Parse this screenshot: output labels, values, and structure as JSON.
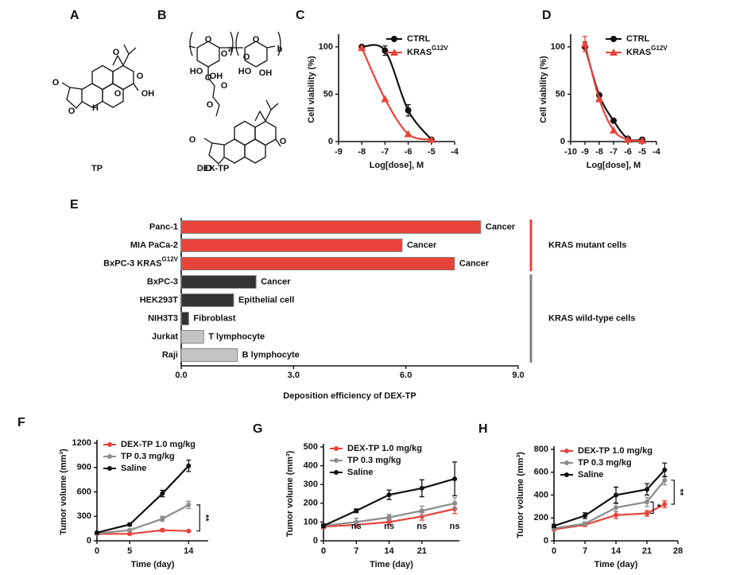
{
  "panels": [
    "A",
    "B",
    "C",
    "D",
    "E",
    "F",
    "G",
    "H"
  ],
  "structures": [
    {
      "name": "TP",
      "atoms": [
        "O",
        "O",
        "O",
        "O",
        "OH",
        "O",
        "H"
      ]
    },
    {
      "name": "DEX-TP",
      "atoms": [
        "O",
        "O",
        "HO",
        "OH",
        "O",
        "O",
        "HO",
        "OH",
        "O",
        "a",
        "b",
        "O",
        "O",
        "O",
        "O",
        "O"
      ]
    }
  ],
  "chart_data": [
    {
      "type": "scatter",
      "xlabel": "Log[dose], M",
      "ylabel": "Cell viability (%)",
      "x": [
        -8,
        -7,
        -6,
        -5
      ],
      "xlim": [
        -9,
        -4
      ],
      "xticks": [
        -9,
        -8,
        -7,
        -6,
        -5,
        -4
      ],
      "ylim": [
        0,
        110
      ],
      "yticks": [
        0,
        50,
        100
      ],
      "legend": "upper right",
      "series": [
        {
          "name": "CTRL",
          "color": "#111111",
          "marker": "circle",
          "values": [
            100,
            96,
            33,
            2
          ],
          "errors": [
            null,
            5,
            6,
            null
          ]
        },
        {
          "name": "KRASG12V",
          "color": "#e8433a",
          "marker": "triangle",
          "values": [
            99,
            45,
            8,
            2
          ]
        }
      ]
    },
    {
      "type": "scatter",
      "xlabel": "Log[dose], M",
      "ylabel": "Cell viability (%)",
      "x": [
        -9,
        -8,
        -7,
        -6,
        -5
      ],
      "xlim": [
        -10,
        -4
      ],
      "xticks": [
        -10,
        -9,
        -8,
        -7,
        -6,
        -5,
        -4
      ],
      "ylim": [
        0,
        110
      ],
      "yticks": [
        0,
        50,
        100
      ],
      "legend": "upper right",
      "series": [
        {
          "name": "CTRL",
          "color": "#111111",
          "marker": "circle",
          "values": [
            100,
            49,
            22,
            3,
            2
          ],
          "errors": [
            5,
            null,
            null,
            null,
            null
          ]
        },
        {
          "name": "KRASG12V",
          "color": "#e8433a",
          "marker": "triangle",
          "values": [
            103,
            45,
            12,
            2,
            1
          ],
          "errors": [
            8,
            null,
            null,
            null,
            null
          ]
        }
      ]
    },
    {
      "type": "bar",
      "orientation": "horizontal",
      "xlabel": "Deposition efficiency of DEX-TP",
      "categories": [
        "Panc-1",
        "MIA PaCa-2",
        "BxPC-3 KRASG12V",
        "BxPC-3",
        "HEK293T",
        "NIH3T3",
        "Jurkat",
        "Raji"
      ],
      "values": [
        8.0,
        5.9,
        7.3,
        2.0,
        1.4,
        0.2,
        0.6,
        1.5
      ],
      "colors": [
        "#e8433a",
        "#e8433a",
        "#e8433a",
        "#333333",
        "#333333",
        "#333333",
        "#c4c4c4",
        "#c4c4c4"
      ],
      "labels": [
        "Cancer",
        "Cancer",
        "Cancer",
        "Cancer",
        "Epithelial cell",
        "Fibroblast",
        "T lymphocyte",
        "B lymphocyte"
      ],
      "groups": [
        {
          "name": "KRAS mutant cells",
          "color": "#e8433a"
        },
        {
          "name": "KRAS wild-type cells",
          "color": "#808080"
        }
      ],
      "xlim": [
        0,
        9
      ],
      "xticks": [
        {
          "value": 0,
          "label": "0.0"
        },
        {
          "value": 3,
          "label": "3.0"
        },
        {
          "value": 6,
          "label": "6.0"
        },
        {
          "value": 9,
          "label": "9.0"
        }
      ]
    },
    {
      "type": "line",
      "xlabel": "Time (day)",
      "ylabel": "Tumor volume (mm³)",
      "x": [
        0,
        5,
        10,
        14
      ],
      "xlim": [
        0,
        17
      ],
      "xticks": [
        0,
        5,
        14
      ],
      "ylim": [
        0,
        1200
      ],
      "yticks": [
        0,
        300,
        600,
        900,
        1200
      ],
      "legend": "upper left",
      "annotations": [
        "**"
      ],
      "series": [
        {
          "name": "DEX-TP 1.0 mg/kg",
          "color": "#e8433a",
          "values": [
            85,
            85,
            130,
            120
          ],
          "errors": [
            10,
            10,
            15,
            10
          ]
        },
        {
          "name": "TP 0.3 mg/kg",
          "color": "#8c8c8c",
          "values": [
            90,
            130,
            270,
            440
          ],
          "errors": [
            10,
            15,
            30,
            45
          ]
        },
        {
          "name": "Saline",
          "color": "#111111",
          "values": [
            100,
            200,
            580,
            920
          ],
          "errors": [
            10,
            15,
            40,
            70
          ]
        }
      ]
    },
    {
      "type": "line",
      "xlabel": "Time (day)",
      "ylabel": "Tumor volume (mm³)",
      "x": [
        0,
        7,
        14,
        21,
        28
      ],
      "xlim": [
        0,
        29
      ],
      "xticks": [
        0,
        7,
        14,
        21
      ],
      "ylim": [
        0,
        500
      ],
      "yticks": [
        0,
        100,
        200,
        300,
        400,
        500
      ],
      "legend": "upper left",
      "annotations": [
        "ns",
        "ns",
        "ns",
        "ns"
      ],
      "series": [
        {
          "name": "DEX-TP 1.0 mg/kg",
          "color": "#e8433a",
          "values": [
            75,
            85,
            100,
            130,
            170
          ],
          "errors": [
            10,
            15,
            15,
            20,
            25
          ]
        },
        {
          "name": "TP 0.3 mg/kg",
          "color": "#8c8c8c",
          "values": [
            80,
            100,
            125,
            160,
            200
          ],
          "errors": [
            10,
            20,
            15,
            25,
            30
          ]
        },
        {
          "name": "Saline",
          "color": "#111111",
          "values": [
            80,
            160,
            245,
            280,
            330
          ],
          "errors": [
            10,
            10,
            25,
            45,
            90
          ]
        }
      ]
    },
    {
      "type": "line",
      "xlabel": "Time (day)",
      "ylabel": "Tumor volume (mm³)",
      "x": [
        0,
        7,
        14,
        21,
        25
      ],
      "xlim": [
        0,
        28
      ],
      "xticks": [
        0,
        7,
        14,
        21,
        28
      ],
      "ylim": [
        0,
        800
      ],
      "yticks": [
        0,
        200,
        400,
        600,
        800
      ],
      "legend": "upper left",
      "annotations": [
        "*",
        "**"
      ],
      "series": [
        {
          "name": "DEX-TP 1.0 mg/kg",
          "color": "#e8433a",
          "values": [
            100,
            140,
            225,
            240,
            320
          ],
          "errors": [
            10,
            15,
            30,
            25,
            30
          ]
        },
        {
          "name": "TP 0.3 mg/kg",
          "color": "#8c8c8c",
          "values": [
            110,
            150,
            290,
            340,
            530
          ],
          "errors": [
            10,
            15,
            35,
            40,
            40
          ]
        },
        {
          "name": "Saline",
          "color": "#111111",
          "values": [
            130,
            220,
            400,
            450,
            620
          ],
          "errors": [
            15,
            25,
            70,
            50,
            60
          ]
        }
      ]
    }
  ]
}
